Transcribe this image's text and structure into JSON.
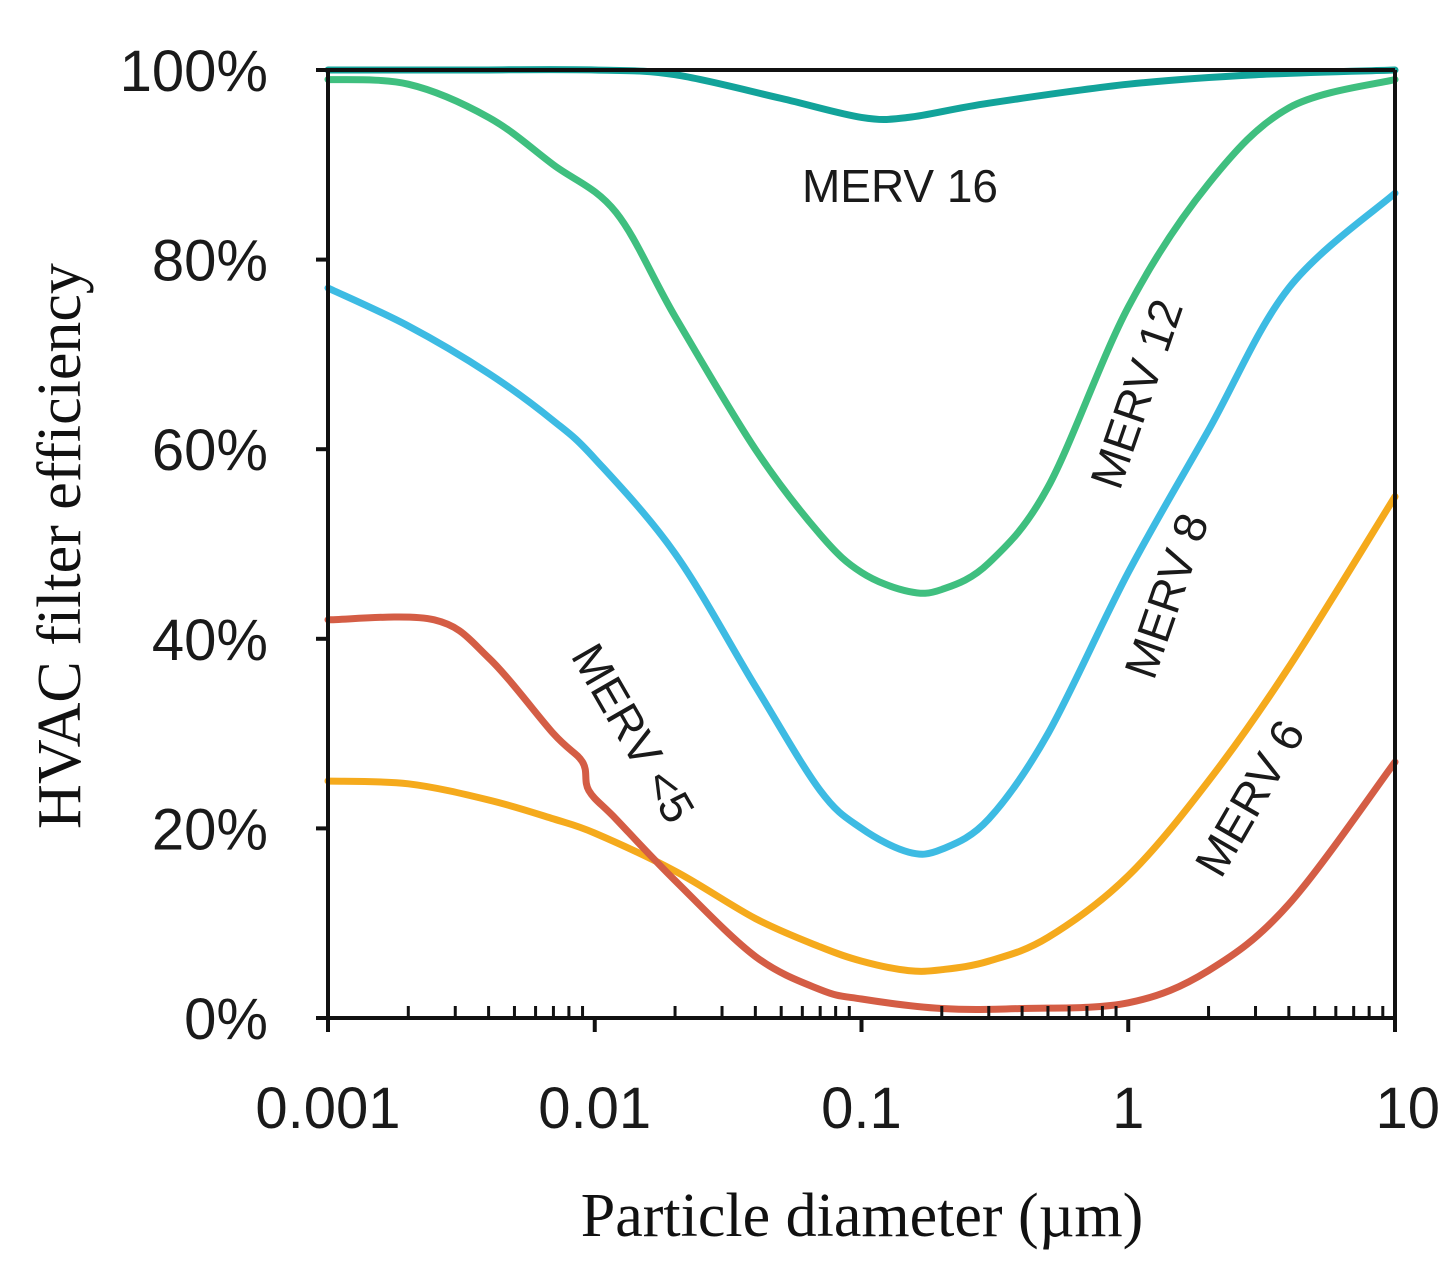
{
  "chart_data": {
    "type": "line",
    "title": "",
    "xlabel": "Particle diameter (µm)",
    "ylabel": "HVAC filter efficiency",
    "x_scale": "log",
    "xlim": [
      0.001,
      10
    ],
    "ylim": [
      0,
      100
    ],
    "x_ticks": [
      0.001,
      0.01,
      0.1,
      1,
      10
    ],
    "x_tick_labels": [
      "0.001",
      "0.01",
      "0.1",
      "1",
      "10"
    ],
    "y_ticks": [
      0,
      20,
      40,
      60,
      80,
      100
    ],
    "y_tick_labels": [
      "0%",
      "20%",
      "40%",
      "60%",
      "80%",
      "100%"
    ],
    "grid": false,
    "series": [
      {
        "name": "MERV 16",
        "label": "MERV 16",
        "color": "#12a39a",
        "x": [
          0.001,
          0.003,
          0.01,
          0.02,
          0.05,
          0.1,
          0.15,
          0.3,
          1,
          3,
          10
        ],
        "y": [
          100,
          100,
          100,
          99.5,
          97,
          95,
          95,
          96.5,
          98.5,
          99.5,
          100
        ]
      },
      {
        "name": "MERV 12",
        "label": "MERV 12",
        "color": "#3fbf7f",
        "x": [
          0.001,
          0.002,
          0.004,
          0.007,
          0.012,
          0.02,
          0.04,
          0.07,
          0.1,
          0.15,
          0.2,
          0.3,
          0.5,
          1,
          2,
          4,
          10
        ],
        "y": [
          99,
          98.5,
          95,
          90,
          85,
          74,
          60,
          51,
          47,
          45,
          45.2,
          48,
          56,
          75,
          88,
          96,
          99
        ]
      },
      {
        "name": "MERV 8",
        "label": "MERV 8",
        "color": "#3dbbe3",
        "x": [
          0.001,
          0.002,
          0.004,
          0.007,
          0.01,
          0.02,
          0.04,
          0.07,
          0.1,
          0.15,
          0.2,
          0.3,
          0.5,
          1,
          2,
          4,
          10
        ],
        "y": [
          77,
          73,
          68,
          63,
          59,
          49,
          35,
          24,
          20,
          17.5,
          17.8,
          21,
          30,
          47,
          62,
          77,
          87
        ]
      },
      {
        "name": "MERV 6",
        "label": "MERV 6",
        "color": "#f5aa1c",
        "x": [
          0.001,
          0.002,
          0.004,
          0.007,
          0.01,
          0.02,
          0.04,
          0.07,
          0.1,
          0.15,
          0.2,
          0.3,
          0.5,
          1,
          2,
          4,
          10
        ],
        "y": [
          25,
          24.7,
          23,
          21,
          19.5,
          15.5,
          10.5,
          7.5,
          6,
          5,
          5.1,
          6,
          8.5,
          15,
          25,
          37,
          55
        ]
      },
      {
        "name": "MERV <5",
        "label": "MERV <5",
        "color": "#d45d45",
        "x": [
          0.001,
          0.0025,
          0.004,
          0.007,
          0.009,
          0.0095,
          0.012,
          0.02,
          0.04,
          0.07,
          0.1,
          0.2,
          0.4,
          1,
          2,
          4,
          10
        ],
        "y": [
          42,
          42,
          38,
          30,
          27,
          24,
          21,
          14.5,
          6.5,
          3,
          2,
          1,
          1,
          1.6,
          5,
          12,
          27
        ]
      }
    ]
  }
}
